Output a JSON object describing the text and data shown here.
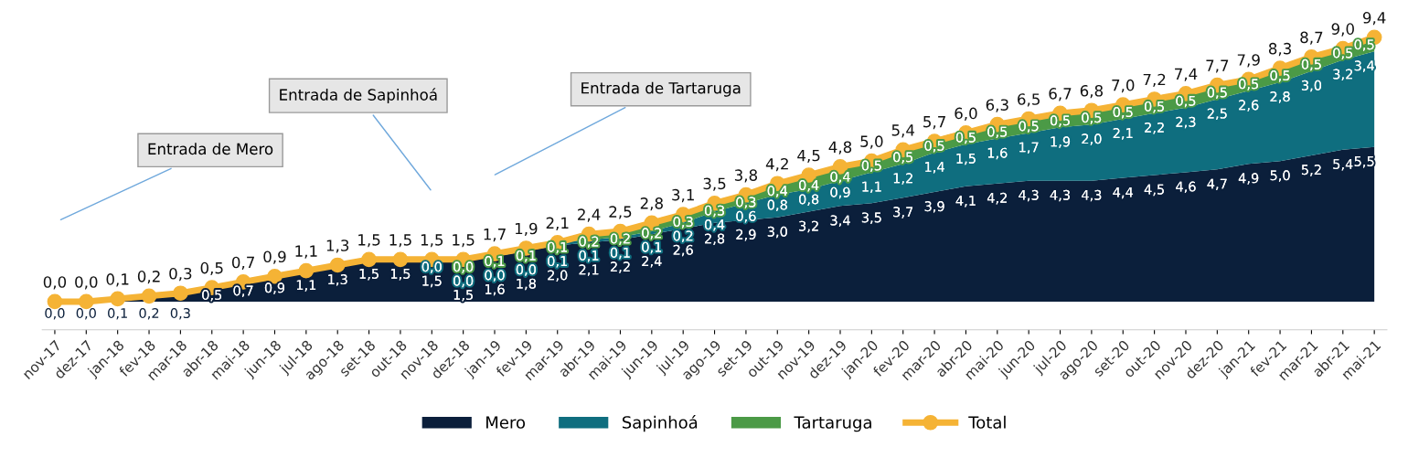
{
  "chart_data": {
    "type": "area",
    "stacked": true,
    "legend": "bottom",
    "categories": [
      "nov-17",
      "dez-17",
      "jan-18",
      "fev-18",
      "mar-18",
      "abr-18",
      "mai-18",
      "jun-18",
      "jul-18",
      "ago-18",
      "set-18",
      "out-18",
      "nov-18",
      "dez-18",
      "jan-19",
      "fev-19",
      "mar-19",
      "abr-19",
      "mai-19",
      "jun-19",
      "jul-19",
      "ago-19",
      "set-19",
      "out-19",
      "nov-19",
      "dez-19",
      "jan-20",
      "fev-20",
      "mar-20",
      "abr-20",
      "mai-20",
      "jun-20",
      "jul-20",
      "ago-20",
      "set-20",
      "out-20",
      "nov-20",
      "dez-20",
      "jan-21",
      "fev-21",
      "mar-21",
      "abr-21",
      "mai-21"
    ],
    "series": [
      {
        "name": "Mero",
        "color": "#0b1f3b",
        "values": [
          0.0,
          0.0,
          0.1,
          0.2,
          0.3,
          0.5,
          0.7,
          0.9,
          1.1,
          1.3,
          1.5,
          1.5,
          1.5,
          1.5,
          1.6,
          1.8,
          2.0,
          2.1,
          2.2,
          2.4,
          2.6,
          2.8,
          2.9,
          3.0,
          3.2,
          3.4,
          3.5,
          3.7,
          3.9,
          4.1,
          4.2,
          4.3,
          4.3,
          4.3,
          4.4,
          4.5,
          4.6,
          4.7,
          4.9,
          5.0,
          5.2,
          5.4,
          5.5
        ],
        "value_labels": [
          "0,0",
          "0,0",
          "0,1",
          "0,2",
          "0,3",
          "0,5",
          "0,7",
          "0,9",
          "1,1",
          "1,3",
          "1,5",
          "1,5",
          "1,5",
          "1,5",
          "1,6",
          "1,8",
          "2,0",
          "2,1",
          "2,2",
          "2,4",
          "2,6",
          "2,8",
          "2,9",
          "3,0",
          "3,2",
          "3,4",
          "3,5",
          "3,7",
          "3,9",
          "4,1",
          "4,2",
          "4,3",
          "4,3",
          "4,3",
          "4,4",
          "4,5",
          "4,6",
          "4,7",
          "4,9",
          "5,0",
          "5,2",
          "5,4",
          "5,5"
        ]
      },
      {
        "name": "Sapinhoá",
        "color": "#0f6e7f",
        "values": [
          null,
          null,
          null,
          null,
          null,
          null,
          null,
          null,
          null,
          null,
          null,
          null,
          0.0,
          0.0,
          0.0,
          0.0,
          0.1,
          0.1,
          0.1,
          0.1,
          0.2,
          0.4,
          0.6,
          0.8,
          0.8,
          0.9,
          1.1,
          1.2,
          1.4,
          1.5,
          1.6,
          1.7,
          1.9,
          2.0,
          2.1,
          2.2,
          2.3,
          2.5,
          2.6,
          2.8,
          3.0,
          3.2,
          3.4
        ],
        "value_labels": [
          null,
          null,
          null,
          null,
          null,
          null,
          null,
          null,
          null,
          null,
          null,
          null,
          "0,0",
          "0,0",
          "0,0",
          "0,0",
          "0,1",
          "0,1",
          "0,1",
          "0,1",
          "0,2",
          "0,4",
          "0,6",
          "0,8",
          "0,8",
          "0,9",
          "1,1",
          "1,2",
          "1,4",
          "1,5",
          "1,6",
          "1,7",
          "1,9",
          "2,0",
          "2,1",
          "2,2",
          "2,3",
          "2,5",
          "2,6",
          "2,8",
          "3,0",
          "3,2",
          "3,4"
        ]
      },
      {
        "name": "Tartaruga",
        "color": "#4b9a46",
        "values": [
          null,
          null,
          null,
          null,
          null,
          null,
          null,
          null,
          null,
          null,
          null,
          null,
          null,
          0.0,
          0.1,
          0.1,
          0.1,
          0.2,
          0.2,
          0.2,
          0.3,
          0.3,
          0.3,
          0.4,
          0.4,
          0.4,
          0.5,
          0.5,
          0.5,
          0.5,
          0.5,
          0.5,
          0.5,
          0.5,
          0.5,
          0.5,
          0.5,
          0.5,
          0.5,
          0.5,
          0.5,
          0.5,
          0.5
        ],
        "value_labels": [
          null,
          null,
          null,
          null,
          null,
          null,
          null,
          null,
          null,
          null,
          null,
          null,
          null,
          "0,0",
          "0,1",
          "0,1",
          "0,1",
          "0,2",
          "0,2",
          "0,2",
          "0,3",
          "0,3",
          "0,3",
          "0,4",
          "0,4",
          "0,4",
          "0,5",
          "0,5",
          "0,5",
          "0,5",
          "0,5",
          "0,5",
          "0,5",
          "0,5",
          "0,5",
          "0,5",
          "0,5",
          "0,5",
          "0,5",
          "0,5",
          "0,5",
          "0,5",
          "0,5"
        ]
      },
      {
        "name": "Total",
        "type": "line",
        "marker": "circle",
        "color": "#f5b335",
        "values": [
          0.0,
          0.0,
          0.1,
          0.2,
          0.3,
          0.5,
          0.7,
          0.9,
          1.1,
          1.3,
          1.5,
          1.5,
          1.5,
          1.5,
          1.7,
          1.9,
          2.1,
          2.4,
          2.5,
          2.8,
          3.1,
          3.5,
          3.8,
          4.2,
          4.5,
          4.8,
          5.0,
          5.4,
          5.7,
          6.0,
          6.3,
          6.5,
          6.7,
          6.8,
          7.0,
          7.2,
          7.4,
          7.7,
          7.9,
          8.3,
          8.7,
          9.0,
          9.4
        ],
        "value_labels": [
          "0,0",
          "0,0",
          "0,1",
          "0,2",
          "0,3",
          "0,5",
          "0,7",
          "0,9",
          "1,1",
          "1,3",
          "1,5",
          "1,5",
          "1,5",
          "1,5",
          "1,7",
          "1,9",
          "2,1",
          "2,4",
          "2,5",
          "2,8",
          "3,1",
          "3,5",
          "3,8",
          "4,2",
          "4,5",
          "4,8",
          "5,0",
          "5,4",
          "5,7",
          "6,0",
          "6,3",
          "6,5",
          "6,7",
          "6,8",
          "7,0",
          "7,2",
          "7,4",
          "7,7",
          "7,9",
          "8,3",
          "8,7",
          "9,0",
          "9,4"
        ]
      }
    ],
    "annotations": [
      "Entrada de Mero",
      "Entrada de Sapinhoá",
      "Entrada de Tartaruga"
    ]
  }
}
